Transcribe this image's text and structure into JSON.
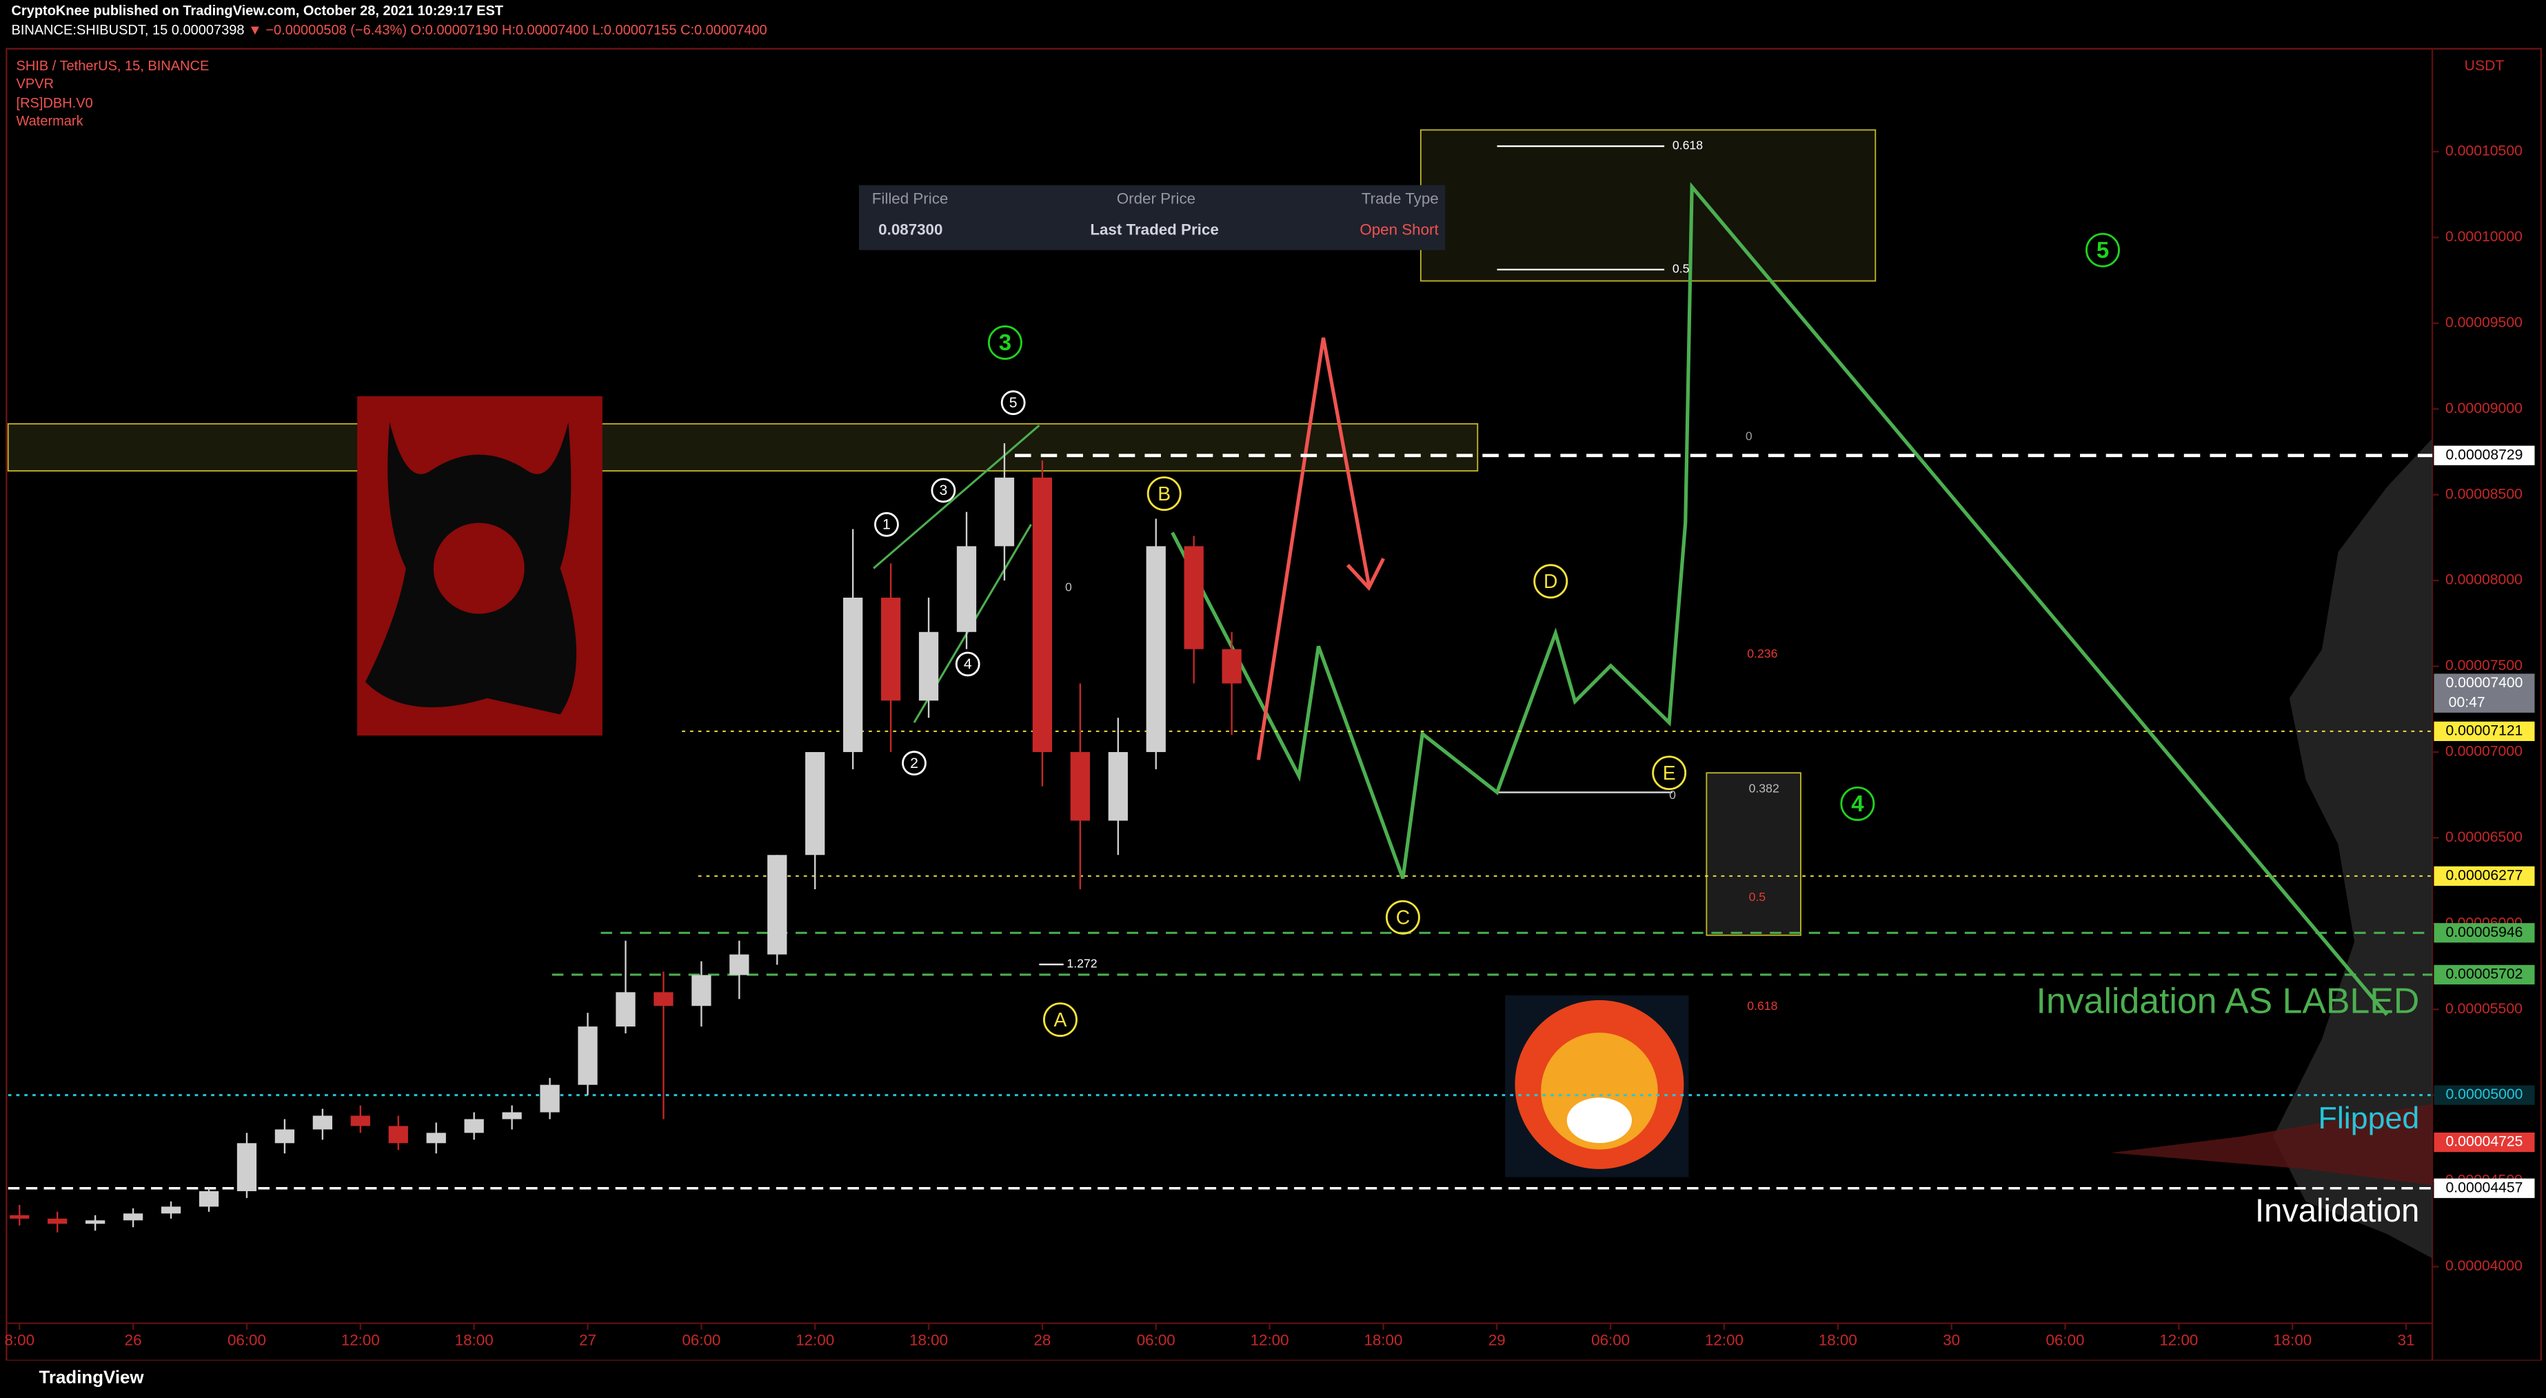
{
  "header": {
    "publisher": "CryptoKnee published on TradingView.com, October 28, 2021 10:29:17 EST",
    "symbol": "BINANCE:SHIBUSDT, 15",
    "last": "0.00007398",
    "change": "▼ −0.00000508 (−6.43%)",
    "ohlc": "O:0.00007190 H:0.00007400 L:0.00007155 C:0.00007400"
  },
  "legend": [
    "SHIB / TetherUS, 15, BINANCE",
    "VPVR",
    "[RS]DBH.V0",
    "Watermark"
  ],
  "order_panel": {
    "headers": [
      "Filled Price",
      "Order Price",
      "Trade Type"
    ],
    "values": [
      "0.087300",
      "Last Traded Price",
      "Open Short"
    ]
  },
  "footer": "TradingView",
  "chart_data": {
    "type": "candlestick",
    "currency": "USDT",
    "up_color": "#cfcfcf",
    "down_color": "#c62828",
    "x": [
      -6,
      -4,
      -2,
      0,
      2,
      4,
      6,
      8,
      10,
      12,
      14,
      16,
      18,
      20,
      22,
      24,
      26,
      28,
      30,
      32,
      34,
      36,
      38,
      40,
      42,
      44,
      46,
      48,
      50,
      52,
      54,
      56,
      58
    ],
    "open": [
      4.3e-05,
      4.28e-05,
      4.25e-05,
      4.27e-05,
      4.31e-05,
      4.35e-05,
      4.44e-05,
      4.72e-05,
      4.8e-05,
      4.88e-05,
      4.82e-05,
      4.72e-05,
      4.78e-05,
      4.86e-05,
      4.9e-05,
      5.06e-05,
      5.4e-05,
      5.6e-05,
      5.52e-05,
      5.7e-05,
      5.82e-05,
      6.4e-05,
      7e-05,
      7.9e-05,
      7.3e-05,
      7.7e-05,
      8.2e-05,
      8.6e-05,
      7e-05,
      6.6e-05,
      7e-05,
      8.2e-05,
      7.6e-05
    ],
    "high": [
      4.36e-05,
      4.32e-05,
      4.3e-05,
      4.34e-05,
      4.38e-05,
      4.46e-05,
      4.78e-05,
      4.86e-05,
      4.92e-05,
      4.94e-05,
      4.88e-05,
      4.84e-05,
      4.9e-05,
      4.94e-05,
      5.1e-05,
      5.48e-05,
      5.9e-05,
      5.72e-05,
      5.78e-05,
      5.9e-05,
      6.4e-05,
      7e-05,
      8.3e-05,
      8.1e-05,
      7.9e-05,
      8.4e-05,
      8.8e-05,
      8.7e-05,
      7.4e-05,
      7.2e-05,
      8.36e-05,
      8.26e-05,
      7.7e-05
    ],
    "low": [
      4.24e-05,
      4.2e-05,
      4.21e-05,
      4.23e-05,
      4.28e-05,
      4.32e-05,
      4.4e-05,
      4.66e-05,
      4.74e-05,
      4.78e-05,
      4.68e-05,
      4.66e-05,
      4.74e-05,
      4.8e-05,
      4.86e-05,
      5e-05,
      5.36e-05,
      4.86e-05,
      5.4e-05,
      5.56e-05,
      5.76e-05,
      6.2e-05,
      6.9e-05,
      7e-05,
      7.2e-05,
      7.6e-05,
      8e-05,
      6.8e-05,
      6.2e-05,
      6.4e-05,
      6.9e-05,
      7.4e-05,
      7.1e-05
    ],
    "close": [
      4.28e-05,
      4.25e-05,
      4.27e-05,
      4.31e-05,
      4.35e-05,
      4.44e-05,
      4.72e-05,
      4.8e-05,
      4.88e-05,
      4.82e-05,
      4.72e-05,
      4.78e-05,
      4.86e-05,
      4.9e-05,
      5.06e-05,
      5.4e-05,
      5.6e-05,
      5.52e-05,
      5.7e-05,
      5.82e-05,
      6.4e-05,
      7e-05,
      7.9e-05,
      7.3e-05,
      7.7e-05,
      8.2e-05,
      8.6e-05,
      7e-05,
      6.6e-05,
      7e-05,
      8.2e-05,
      7.6e-05,
      7.4e-05
    ],
    "xlim": [
      -6.6,
      121.3
    ],
    "xticks": [
      {
        "value": -6,
        "label": "8:00"
      },
      {
        "value": 0,
        "label": "26"
      },
      {
        "value": 6,
        "label": "06:00"
      },
      {
        "value": 12,
        "label": "12:00"
      },
      {
        "value": 18,
        "label": "18:00"
      },
      {
        "value": 24,
        "label": "27"
      },
      {
        "value": 30,
        "label": "06:00"
      },
      {
        "value": 36,
        "label": "12:00"
      },
      {
        "value": 42,
        "label": "18:00"
      },
      {
        "value": 48,
        "label": "28"
      },
      {
        "value": 54,
        "label": "06:00"
      },
      {
        "value": 60,
        "label": "12:00"
      },
      {
        "value": 66,
        "label": "18:00"
      },
      {
        "value": 72,
        "label": "29"
      },
      {
        "value": 78,
        "label": "06:00"
      },
      {
        "value": 84,
        "label": "12:00"
      },
      {
        "value": 90,
        "label": "18:00"
      },
      {
        "value": 96,
        "label": "30"
      },
      {
        "value": 102,
        "label": "06:00"
      },
      {
        "value": 108,
        "label": "12:00"
      },
      {
        "value": 114,
        "label": "18:00"
      },
      {
        "value": 120,
        "label": "31"
      }
    ],
    "ylim": [
      3.67e-05,
      0.000111
    ],
    "yticks": [
      {
        "value": 4e-05,
        "label": "0.00004000"
      },
      {
        "value": 4.5e-05,
        "label": "0.00004500"
      },
      {
        "value": 5e-05,
        "label": "0.00005000"
      },
      {
        "value": 5.5e-05,
        "label": "0.00005500"
      },
      {
        "value": 6e-05,
        "label": "0.00006000"
      },
      {
        "value": 6.5e-05,
        "label": "0.00006500"
      },
      {
        "value": 7e-05,
        "label": "0.00007000"
      },
      {
        "value": 7.5e-05,
        "label": "0.00007500"
      },
      {
        "value": 8e-05,
        "label": "0.00008000"
      },
      {
        "value": 8.5e-05,
        "label": "0.00008500"
      },
      {
        "value": 9e-05,
        "label": "0.00009000"
      },
      {
        "value": 9.5e-05,
        "label": "0.00009500"
      },
      {
        "value": 0.0001,
        "label": "0.00010000"
      },
      {
        "value": 0.000105,
        "label": "0.00010500"
      }
    ],
    "price_lines": [
      {
        "value": 8.729e-05,
        "label": "0.00008729",
        "color": "#ffffff"
      },
      {
        "value": 7.4e-05,
        "label": "0.00007400",
        "color": "#787b86"
      },
      {
        "value": 7.121e-05,
        "label": "0.00007121",
        "color": "#ffeb3b"
      },
      {
        "value": 6.277e-05,
        "label": "0.00006277",
        "color": "#ffeb3b"
      },
      {
        "value": 5.946e-05,
        "label": "0.00005946",
        "color": "#4caf50"
      },
      {
        "value": 5.702e-05,
        "label": "0.00005702",
        "color": "#4caf50"
      },
      {
        "value": 5e-05,
        "label": "0.00005000",
        "color": "#26c6da"
      },
      {
        "value": 4.725e-05,
        "label": "0.00004725",
        "color": "#e53935"
      },
      {
        "value": 4.457e-05,
        "label": "0.00004457",
        "color": "#ffffff"
      }
    ],
    "countdown": "00:47",
    "wave_labels": [
      "1",
      "2",
      "3",
      "4",
      "5"
    ],
    "major_wave_labels": [
      "3",
      "5",
      "4"
    ],
    "abc_labels": [
      "A",
      "B",
      "C",
      "D",
      "E"
    ],
    "fib_labels": [
      "0.618",
      "0.5",
      "0",
      "1.272",
      "0",
      "0.236",
      "0.382",
      "0.5",
      "0.618",
      "0"
    ],
    "zone_labels": [
      "Invalidation AS LABLED",
      "Flipped",
      "Invalidation"
    ]
  }
}
